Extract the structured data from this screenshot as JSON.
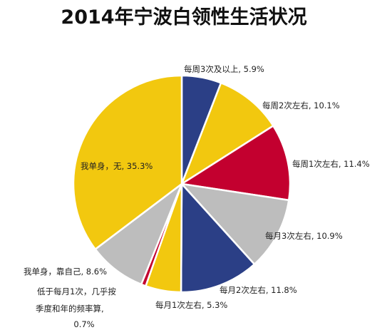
{
  "chart_data": {
    "type": "pie",
    "title": "2014年宁波白领性生活状况",
    "slices": [
      {
        "label": "每周3次及以上",
        "value": 5.9,
        "color": "#2b3f86"
      },
      {
        "label": "每周2次左右",
        "value": 10.1,
        "color": "#f2c80f"
      },
      {
        "label": "每周1次左右",
        "value": 11.4,
        "color": "#c3002f"
      },
      {
        "label": "每月3次左右",
        "value": 10.9,
        "color": "#bdbdbd"
      },
      {
        "label": "每月2次左右",
        "value": 11.8,
        "color": "#2b3f86"
      },
      {
        "label": "每月1次左右",
        "value": 5.3,
        "color": "#f2c80f"
      },
      {
        "label": "低于每月1次，几乎按季度和年的频率算",
        "value": 0.7,
        "color": "#c3002f"
      },
      {
        "label": "我单身，靠自己",
        "value": 8.6,
        "color": "#bdbdbd"
      },
      {
        "label": "我单身，无",
        "value": 35.3,
        "color": "#f2c80f"
      }
    ],
    "labels": {
      "s0": "每周3次及以上, 5.9%",
      "s1": "每周2次左右, 10.1%",
      "s2": "每周1次左右, 11.4%",
      "s3": "每月3次左右, 10.9%",
      "s4": "每月2次左右, 11.8%",
      "s5": "每月1次左右, 5.3%",
      "s6_line1": "低于每月1次，几乎按",
      "s6_line2": "季度和年的频率算,",
      "s6_line3": "0.7%",
      "s7": "我单身，靠自己, 8.6%",
      "s8": "我单身，无, 35.3%"
    }
  }
}
